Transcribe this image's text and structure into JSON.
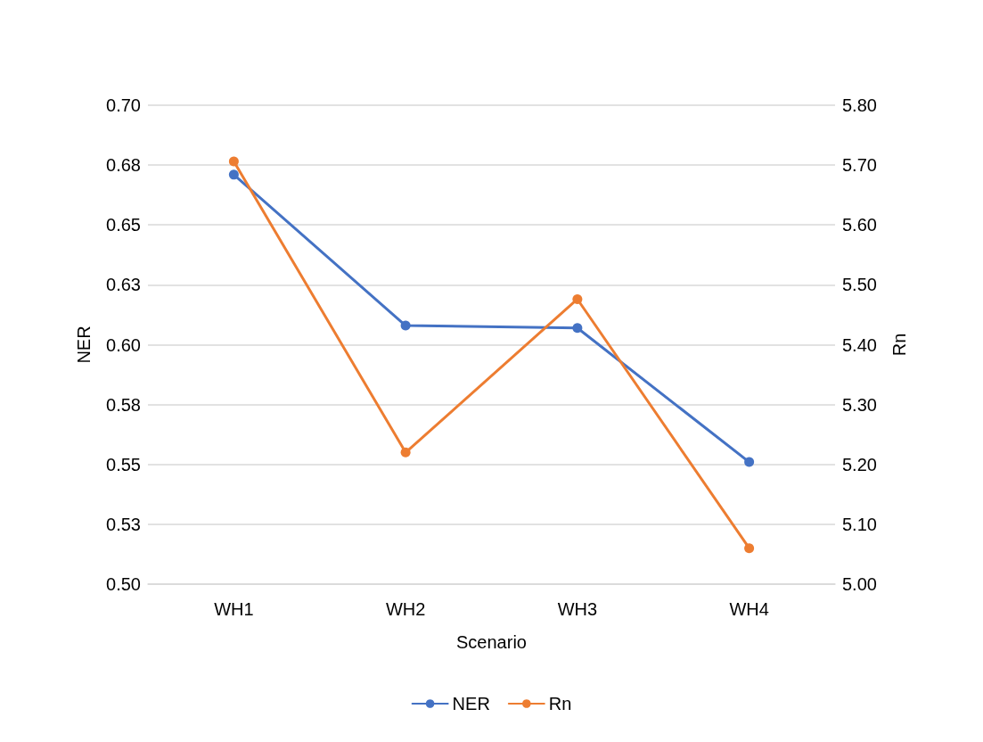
{
  "chart_data": {
    "type": "line",
    "xlabel": "Scenario",
    "ylabel": "NER",
    "y2label": "Rn",
    "categories": [
      "WH1",
      "WH2",
      "WH3",
      "WH4"
    ],
    "series": [
      {
        "name": "NER",
        "color": "#4472c4",
        "values": [
          0.671,
          0.608,
          0.607,
          0.551
        ]
      },
      {
        "name": "Rn",
        "color": "#ed7d31",
        "axis": "y2",
        "values": [
          5.706,
          5.22,
          5.476,
          5.06
        ]
      }
    ],
    "ylim": [
      0.5,
      0.7
    ],
    "yticks": [
      {
        "value": 0.5,
        "label": "0.50"
      },
      {
        "value": 0.525,
        "label": "0.53"
      },
      {
        "value": 0.55,
        "label": "0.55"
      },
      {
        "value": 0.575,
        "label": "0.58"
      },
      {
        "value": 0.6,
        "label": "0.60"
      },
      {
        "value": 0.625,
        "label": "0.63"
      },
      {
        "value": 0.65,
        "label": "0.65"
      },
      {
        "value": 0.675,
        "label": "0.68"
      },
      {
        "value": 0.7,
        "label": "0.70"
      }
    ],
    "y2lim": [
      5.0,
      5.8
    ],
    "y2ticks": [
      {
        "value": 5.0,
        "label": "5.00"
      },
      {
        "value": 5.1,
        "label": "5.10"
      },
      {
        "value": 5.2,
        "label": "5.20"
      },
      {
        "value": 5.3,
        "label": "5.30"
      },
      {
        "value": 5.4,
        "label": "5.40"
      },
      {
        "value": 5.5,
        "label": "5.50"
      },
      {
        "value": 5.6,
        "label": "5.60"
      },
      {
        "value": 5.7,
        "label": "5.70"
      },
      {
        "value": 5.8,
        "label": "5.80"
      }
    ],
    "grid": "y",
    "legend": "bottom",
    "marker": "circle",
    "line_style": "solid"
  }
}
